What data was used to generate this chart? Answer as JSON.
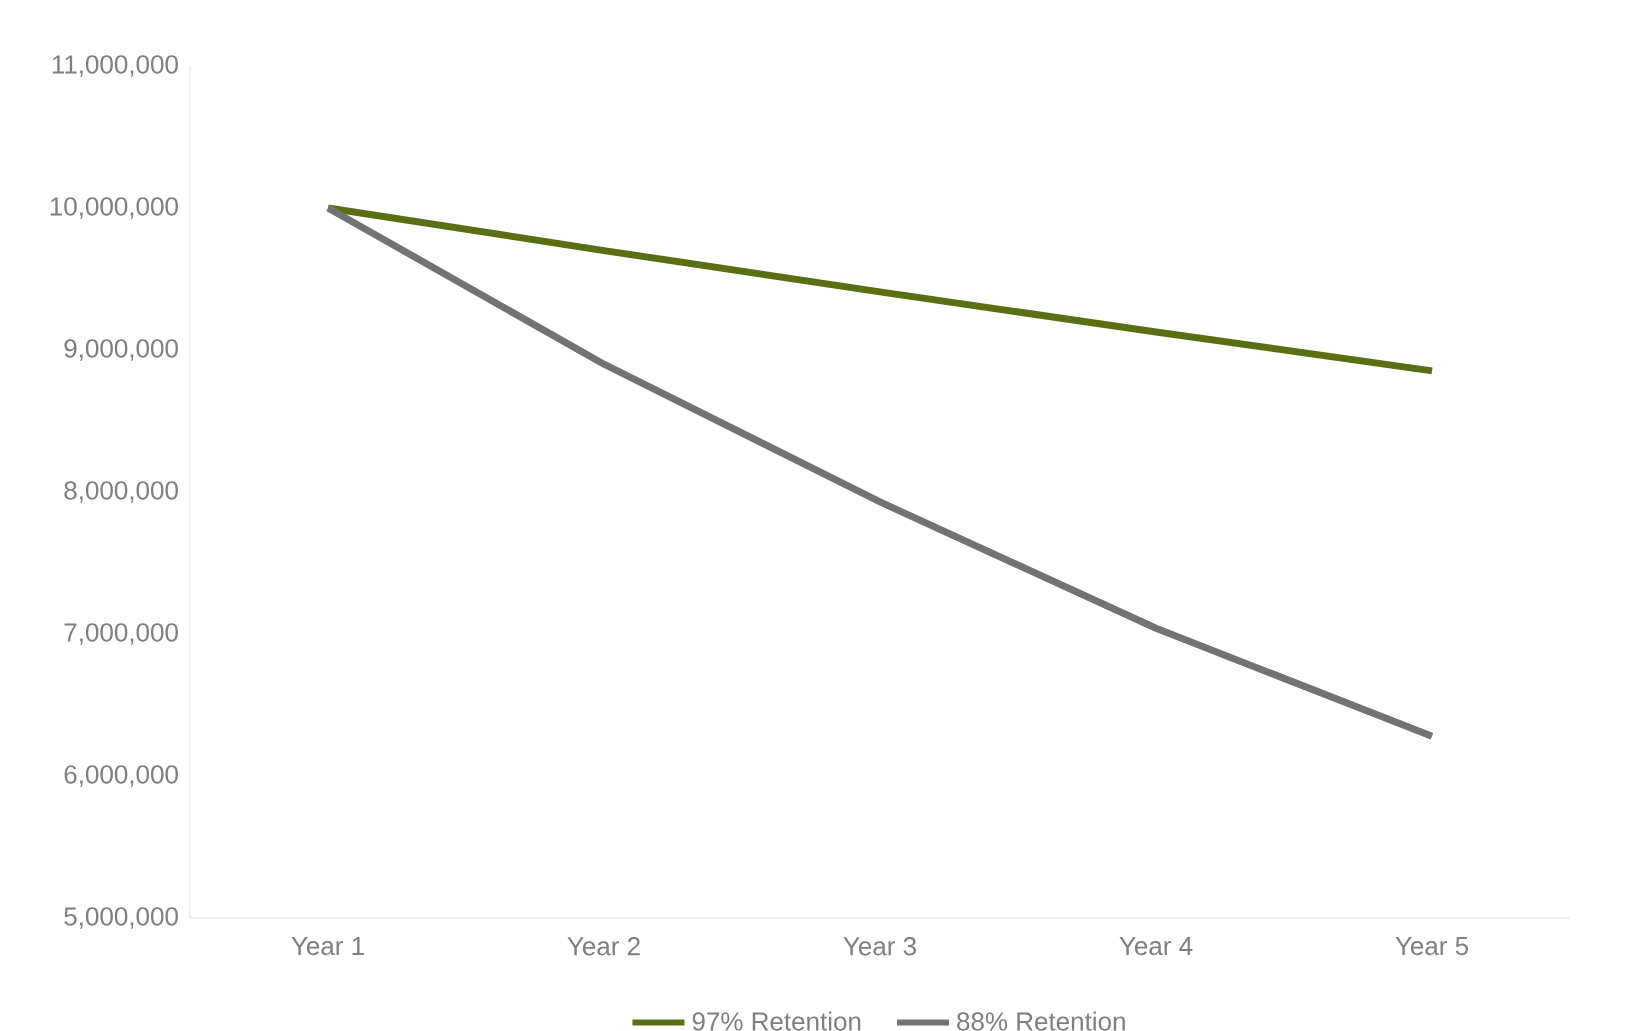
{
  "chart_data": {
    "type": "line",
    "categories": [
      "Year 1",
      "Year 2",
      "Year 3",
      "Year 4",
      "Year 5"
    ],
    "series": [
      {
        "name": "97% Retention",
        "color": "#5a6e14",
        "values": [
          10000000,
          9700000,
          9409000,
          9127000,
          8853000
        ]
      },
      {
        "name": "88% Retention",
        "color": "#737373",
        "values": [
          10000000,
          8900000,
          7930000,
          7040000,
          6280000
        ]
      }
    ],
    "ylim": [
      5000000,
      11000000
    ],
    "yticks": [
      {
        "value": 5000000,
        "label": "5,000,000"
      },
      {
        "value": 6000000,
        "label": "6,000,000"
      },
      {
        "value": 7000000,
        "label": "7,000,000"
      },
      {
        "value": 8000000,
        "label": "8,000,000"
      },
      {
        "value": 9000000,
        "label": "9,000,000"
      },
      {
        "value": 10000000,
        "label": "10,000,000"
      },
      {
        "value": 11000000,
        "label": "11,000,000"
      }
    ],
    "legend": "bottom"
  }
}
